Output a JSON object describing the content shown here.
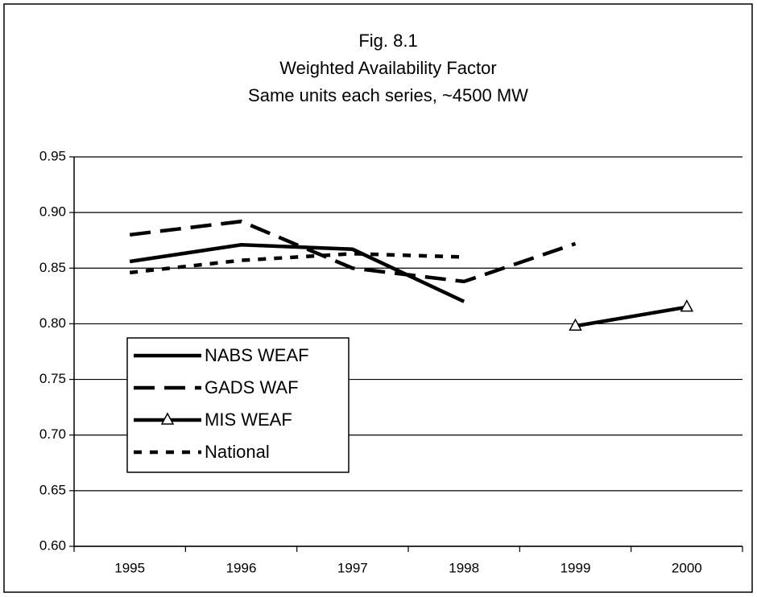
{
  "chart_data": {
    "type": "line",
    "title": "Fig. 8.1",
    "subtitle": [
      "Weighted Availability Factor",
      "Same units each series, ~4500 MW"
    ],
    "categories": [
      "1995",
      "1996",
      "1997",
      "1998",
      "1999",
      "2000"
    ],
    "series": [
      {
        "name": "NABS WEAF",
        "color": "#000000",
        "dash": "solid",
        "values": [
          0.856,
          0.871,
          0.867,
          0.82,
          null,
          null
        ]
      },
      {
        "name": "GADS WAF",
        "color": "#000000",
        "dash": "dashed",
        "values": [
          0.88,
          0.892,
          0.85,
          0.838,
          0.872,
          null
        ]
      },
      {
        "name": "MIS WEAF",
        "color": "#000000",
        "dash": "solid",
        "marker": "triangle",
        "values": [
          null,
          null,
          null,
          null,
          0.798,
          0.815
        ]
      },
      {
        "name": "National",
        "color": "#000000",
        "dash": "dotted",
        "values": [
          0.846,
          0.857,
          0.863,
          0.86,
          null,
          null
        ]
      }
    ],
    "ylim": [
      0.6,
      0.95
    ],
    "yticks": [
      {
        "value": 0.6,
        "label": "0.60"
      },
      0.65,
      {
        "value": 0.7,
        "label": "0.70"
      },
      0.75,
      {
        "value": 0.8,
        "label": "0.80"
      },
      0.85,
      {
        "value": 0.9,
        "label": "0.90"
      },
      0.95
    ],
    "grid": true,
    "legend": "left"
  }
}
